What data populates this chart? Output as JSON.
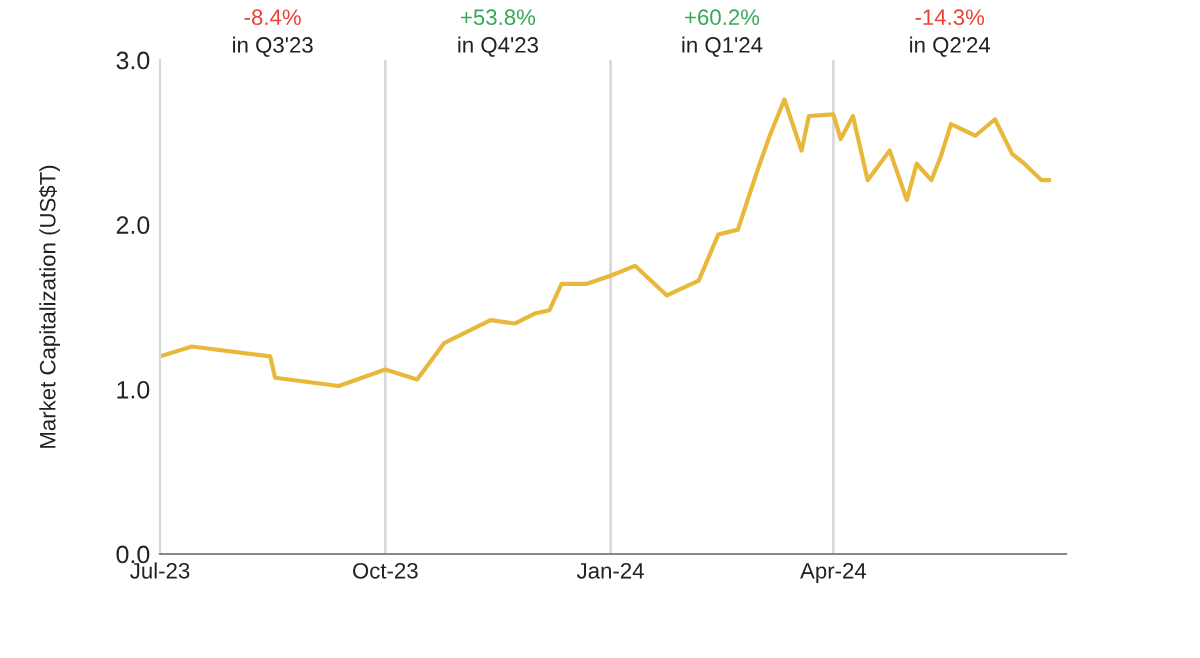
{
  "chart_data": {
    "type": "line",
    "ylabel": "Market Capitalization (US$T)",
    "x": [
      "2023-07-01",
      "2023-07-14",
      "2023-08-15",
      "2023-08-17",
      "2023-09-12",
      "2023-10-01",
      "2023-10-14",
      "2023-10-25",
      "2023-11-13",
      "2023-11-23",
      "2023-12-01",
      "2023-12-07",
      "2023-12-12",
      "2023-12-22",
      "2024-01-01",
      "2024-01-11",
      "2024-01-24",
      "2024-02-06",
      "2024-02-08",
      "2024-02-14",
      "2024-02-22",
      "2024-02-26",
      "2024-03-01",
      "2024-03-06",
      "2024-03-12",
      "2024-03-19",
      "2024-03-22",
      "2024-04-01",
      "2024-04-04",
      "2024-04-09",
      "2024-04-15",
      "2024-04-20",
      "2024-04-24",
      "2024-05-01",
      "2024-05-05",
      "2024-05-11",
      "2024-05-15",
      "2024-05-19",
      "2024-05-29",
      "2024-06-06",
      "2024-06-13",
      "2024-06-18",
      "2024-06-25",
      "2024-06-28"
    ],
    "series": [
      {
        "color": "#e8b83a",
        "values": [
          1.2,
          1.26,
          1.2,
          1.07,
          1.02,
          1.12,
          1.06,
          1.28,
          1.42,
          1.4,
          1.46,
          1.48,
          1.64,
          1.64,
          1.69,
          1.75,
          1.57,
          1.66,
          1.73,
          1.94,
          1.97,
          2.15,
          2.33,
          2.54,
          2.76,
          2.45,
          2.66,
          2.67,
          2.52,
          2.66,
          2.27,
          2.37,
          2.45,
          2.15,
          2.37,
          2.27,
          2.42,
          2.61,
          2.54,
          2.64,
          2.43,
          2.37,
          2.27,
          2.27
        ]
      }
    ],
    "xlim": [
      "2023-07-01",
      "2024-07-05"
    ],
    "xticks": [
      {
        "value": "2023-07-01",
        "label": "Jul-23"
      },
      {
        "value": "2023-10-01",
        "label": "Oct-23"
      },
      {
        "value": "2024-01-01",
        "label": "Jan-24"
      },
      {
        "value": "2024-04-01",
        "label": "Apr-24"
      }
    ],
    "ylim": [
      0,
      3
    ],
    "yticks": [
      {
        "value": 0,
        "label": "0.0"
      },
      {
        "value": 1,
        "label": "1.0"
      },
      {
        "value": 2,
        "label": "2.0"
      },
      {
        "value": 3,
        "label": "3.0"
      }
    ],
    "ref_lines": [
      {
        "axis": "x",
        "value": "2023-10-01",
        "color": "#d9d9d9"
      },
      {
        "axis": "x",
        "value": "2024-01-01",
        "color": "#d9d9d9"
      },
      {
        "axis": "x",
        "value": "2024-04-01",
        "color": "#d9d9d9"
      }
    ],
    "annotations": [
      "-8.4%\nin Q3'23",
      "+53.8%\nin Q4'23",
      "+60.2%\nin Q1'24",
      "-14.3%\nin Q2'24"
    ],
    "grid": false,
    "legend": false,
    "marker": "none",
    "line_style": "solid"
  }
}
